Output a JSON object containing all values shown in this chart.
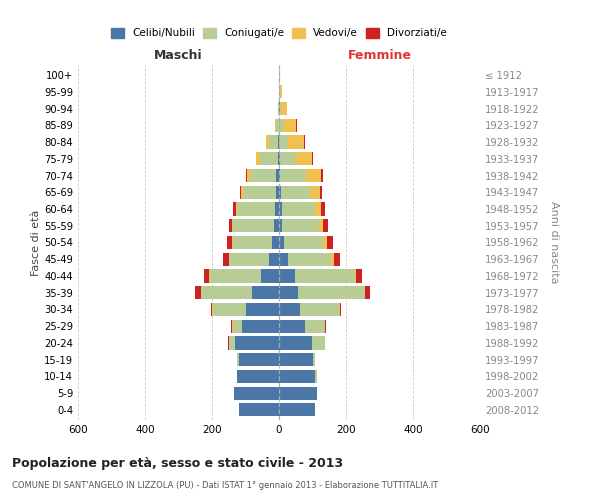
{
  "age_groups": [
    "0-4",
    "5-9",
    "10-14",
    "15-19",
    "20-24",
    "25-29",
    "30-34",
    "35-39",
    "40-44",
    "45-49",
    "50-54",
    "55-59",
    "60-64",
    "65-69",
    "70-74",
    "75-79",
    "80-84",
    "85-89",
    "90-94",
    "95-99",
    "100+"
  ],
  "birth_years": [
    "2008-2012",
    "2003-2007",
    "1998-2002",
    "1993-1997",
    "1988-1992",
    "1983-1987",
    "1978-1982",
    "1973-1977",
    "1968-1972",
    "1963-1967",
    "1958-1962",
    "1953-1957",
    "1948-1952",
    "1943-1947",
    "1938-1942",
    "1933-1937",
    "1928-1932",
    "1923-1927",
    "1918-1922",
    "1913-1917",
    "≤ 1912"
  ],
  "colors": {
    "celibi": "#4b77a8",
    "coniugati": "#b8cc96",
    "vedovi": "#f0c050",
    "divorziati": "#cc2222"
  },
  "male_celibi": [
    120,
    135,
    125,
    120,
    130,
    110,
    100,
    80,
    55,
    30,
    20,
    15,
    12,
    10,
    8,
    4,
    2,
    0,
    0,
    0,
    0
  ],
  "male_coniugati": [
    0,
    0,
    0,
    4,
    18,
    28,
    98,
    152,
    152,
    118,
    118,
    122,
    112,
    98,
    80,
    52,
    28,
    8,
    2,
    0,
    0
  ],
  "male_vedovi": [
    0,
    0,
    0,
    0,
    2,
    2,
    2,
    2,
    2,
    2,
    2,
    4,
    4,
    4,
    8,
    12,
    8,
    5,
    2,
    0,
    0
  ],
  "male_divorziati": [
    0,
    0,
    0,
    0,
    2,
    2,
    4,
    16,
    16,
    16,
    14,
    8,
    8,
    4,
    4,
    0,
    0,
    0,
    0,
    0,
    0
  ],
  "female_celibi": [
    108,
    112,
    108,
    100,
    98,
    78,
    62,
    58,
    48,
    28,
    14,
    10,
    8,
    5,
    4,
    2,
    0,
    0,
    2,
    0,
    0
  ],
  "female_coniugati": [
    0,
    0,
    4,
    8,
    38,
    58,
    118,
    198,
    178,
    128,
    118,
    108,
    98,
    88,
    78,
    48,
    28,
    14,
    5,
    2,
    0
  ],
  "female_vedovi": [
    0,
    0,
    0,
    0,
    2,
    2,
    2,
    2,
    4,
    8,
    10,
    14,
    18,
    28,
    42,
    48,
    48,
    38,
    18,
    8,
    2
  ],
  "female_divorziati": [
    0,
    0,
    0,
    0,
    0,
    2,
    4,
    14,
    18,
    18,
    18,
    14,
    14,
    8,
    8,
    4,
    2,
    2,
    0,
    0,
    0
  ],
  "title": "Popolazione per età, sesso e stato civile - 2013",
  "subtitle": "COMUNE DI SANT'ANGELO IN LIZZOLA (PU) - Dati ISTAT 1° gennaio 2013 - Elaborazione TUTTITALIA.IT",
  "xlabel_left": "Maschi",
  "xlabel_right": "Femmine",
  "ylabel_left": "Fasce di età",
  "ylabel_right": "Anni di nascita",
  "legend_labels": [
    "Celibi/Nubili",
    "Coniugati/e",
    "Vedovi/e",
    "Divorziati/e"
  ],
  "xlim": 600,
  "background": "#ffffff",
  "grid_color": "#cccccc"
}
